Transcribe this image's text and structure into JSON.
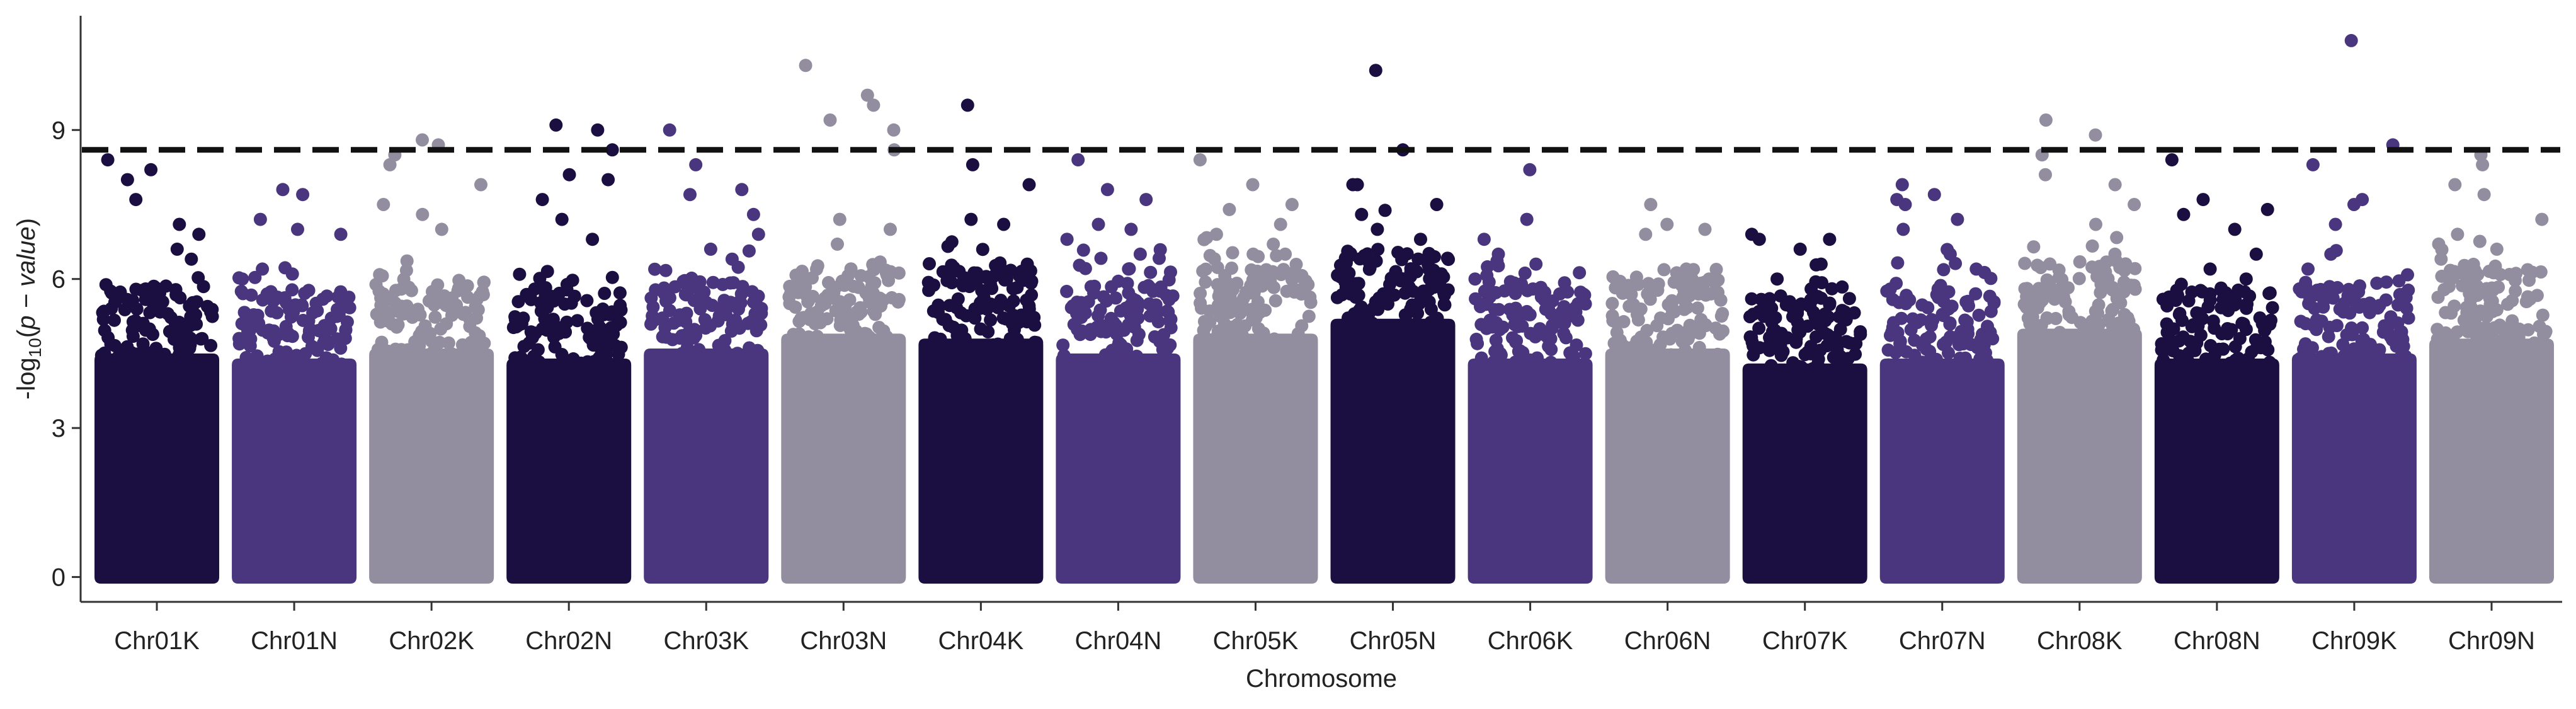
{
  "chart_data": {
    "type": "scatter",
    "subtype": "manhattan",
    "title": "",
    "xlabel": "Chromosome",
    "ylabel": {
      "prefix": "-log",
      "subscript": "10",
      "open": "(",
      "var": "p − value",
      "close": ")"
    },
    "ylim": [
      -0.5,
      11.3
    ],
    "yticks": [
      "0",
      "3",
      "6",
      "9"
    ],
    "ytick_values": [
      0,
      3,
      6,
      9
    ],
    "threshold": 8.6,
    "grid": false,
    "legend": "none",
    "colors": [
      "#1b0f41",
      "#4a357f",
      "#928d9f"
    ],
    "chromosomes": [
      {
        "name": "Chr01K",
        "color": "#1b0f41",
        "base": 5.1,
        "peaks": [
          8.4,
          8.2,
          8.0,
          7.6,
          7.1,
          6.9,
          6.6,
          6.4
        ]
      },
      {
        "name": "Chr01N",
        "color": "#4a357f",
        "base": 5.0,
        "peaks": [
          7.8,
          7.7,
          7.2,
          7.0,
          6.9,
          6.2,
          6.1,
          6.0
        ]
      },
      {
        "name": "Chr02K",
        "color": "#928d9f",
        "base": 5.2,
        "peaks": [
          8.8,
          8.7,
          8.5,
          8.3,
          7.9,
          7.5,
          7.3,
          7.0
        ]
      },
      {
        "name": "Chr02N",
        "color": "#1b0f41",
        "base": 5.0,
        "peaks": [
          9.1,
          9.0,
          8.6,
          8.1,
          8.0,
          7.6,
          7.2,
          6.8
        ]
      },
      {
        "name": "Chr03K",
        "color": "#4a357f",
        "base": 5.2,
        "peaks": [
          9.0,
          8.3,
          7.8,
          7.7,
          7.3,
          6.9,
          6.6,
          6.4
        ]
      },
      {
        "name": "Chr03N",
        "color": "#928d9f",
        "base": 5.5,
        "peaks": [
          10.3,
          9.7,
          9.5,
          9.2,
          9.0,
          8.6,
          7.2,
          7.0
        ]
      },
      {
        "name": "Chr04K",
        "color": "#1b0f41",
        "base": 5.4,
        "peaks": [
          9.5,
          8.3,
          7.9,
          7.2,
          7.1,
          6.3,
          6.2,
          6.1
        ]
      },
      {
        "name": "Chr04N",
        "color": "#4a357f",
        "base": 5.1,
        "peaks": [
          8.4,
          7.8,
          7.6,
          7.1,
          7.0,
          6.8,
          6.5,
          6.2
        ]
      },
      {
        "name": "Chr05K",
        "color": "#928d9f",
        "base": 5.5,
        "peaks": [
          8.4,
          7.9,
          7.5,
          7.4,
          7.1,
          6.9,
          6.7,
          6.5
        ]
      },
      {
        "name": "Chr05N",
        "color": "#1b0f41",
        "base": 5.8,
        "peaks": [
          10.2,
          8.6,
          7.9,
          7.9,
          7.5,
          7.3,
          7.0,
          6.8
        ]
      },
      {
        "name": "Chr06K",
        "color": "#4a357f",
        "base": 5.0,
        "peaks": [
          8.2,
          7.2,
          6.8,
          6.5,
          6.3,
          6.0,
          5.8,
          5.7
        ]
      },
      {
        "name": "Chr06N",
        "color": "#928d9f",
        "base": 5.2,
        "peaks": [
          7.5,
          7.1,
          7.0,
          6.9,
          6.2,
          6.0,
          5.9,
          5.7
        ]
      },
      {
        "name": "Chr07K",
        "color": "#1b0f41",
        "base": 4.9,
        "peaks": [
          6.9,
          6.8,
          6.8,
          6.6,
          6.3,
          6.0,
          5.8,
          5.6
        ]
      },
      {
        "name": "Chr07N",
        "color": "#4a357f",
        "base": 5.0,
        "peaks": [
          7.9,
          7.7,
          7.6,
          7.5,
          7.2,
          7.0,
          6.5,
          6.2
        ]
      },
      {
        "name": "Chr08K",
        "color": "#928d9f",
        "base": 5.6,
        "peaks": [
          9.2,
          8.9,
          8.5,
          8.1,
          7.9,
          7.5,
          7.1,
          6.5
        ]
      },
      {
        "name": "Chr08N",
        "color": "#1b0f41",
        "base": 5.0,
        "peaks": [
          8.4,
          7.6,
          7.4,
          7.3,
          7.0,
          6.5,
          6.2,
          6.0
        ]
      },
      {
        "name": "Chr09K",
        "color": "#4a357f",
        "base": 5.1,
        "peaks": [
          10.8,
          8.7,
          8.3,
          7.6,
          7.5,
          7.1,
          6.5,
          6.2
        ]
      },
      {
        "name": "Chr09N",
        "color": "#928d9f",
        "base": 5.4,
        "peaks": [
          8.5,
          8.3,
          7.9,
          7.7,
          7.2,
          6.9,
          6.6,
          6.4
        ]
      }
    ]
  }
}
